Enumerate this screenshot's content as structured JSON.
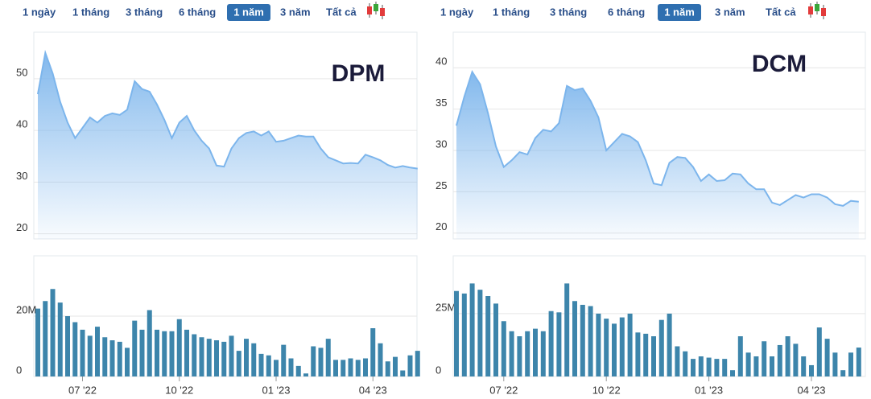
{
  "toolbar": {
    "buttons": [
      "1 ngày",
      "1 tháng",
      "3 tháng",
      "6 tháng",
      "1 năm",
      "3 năm",
      "Tất cả"
    ],
    "active": 4
  },
  "chart_data": [
    {
      "type": "area",
      "title": "DPM",
      "color": "#7cb5ec",
      "values": [
        47,
        55,
        51,
        45.5,
        41.5,
        38.5,
        40.5,
        42.5,
        41.5,
        42.8,
        43.3,
        43,
        44,
        49.5,
        48,
        47.5,
        45,
        42,
        38.5,
        41.5,
        42.8,
        40,
        38,
        36.5,
        33.2,
        33,
        36.5,
        38.5,
        39.5,
        39.8,
        39,
        39.8,
        37.8,
        38,
        38.5,
        39,
        38.8,
        38.8,
        36.5,
        34.8,
        34.2,
        33.6,
        33.7,
        33.6,
        35.3,
        34.8,
        34.2,
        33.3,
        32.8,
        33.1,
        32.8,
        32.6
      ],
      "ylim": [
        19,
        59
      ],
      "yticks": [
        20,
        30,
        40,
        50
      ],
      "grid": true
    },
    {
      "type": "bar",
      "color": "#3d85ab",
      "values": [
        22500000,
        25000000,
        29000000,
        24500000,
        20000000,
        18000000,
        15500000,
        13500000,
        16500000,
        13000000,
        12000000,
        11500000,
        9500000,
        18500000,
        15500000,
        22000000,
        15500000,
        15000000,
        15000000,
        19000000,
        15500000,
        14000000,
        13000000,
        12500000,
        12000000,
        11500000,
        13500000,
        8500000,
        12500000,
        11000000,
        7500000,
        7000000,
        5500000,
        10500000,
        6000000,
        3500000,
        1000000,
        10000000,
        9500000,
        12500000,
        5500000,
        5500000,
        6000000,
        5500000,
        6000000,
        16000000,
        11000000,
        5000000,
        6500000,
        2000000,
        7000000,
        8500000
      ],
      "ylim": [
        0,
        40000000
      ],
      "yticks": [
        0,
        {
          "value": 20000000,
          "label": "20M"
        }
      ],
      "grid": true,
      "xticks": [
        {
          "value": 6,
          "label": "07 '22"
        },
        {
          "value": 19,
          "label": "10 '22"
        },
        {
          "value": 32,
          "label": "01 '23"
        },
        {
          "value": 45,
          "label": "04 '23"
        }
      ]
    },
    {
      "type": "area",
      "title": "DCM",
      "color": "#7cb5ec",
      "values": [
        33,
        36.5,
        39.5,
        38,
        34.5,
        30.5,
        28,
        28.8,
        29.8,
        29.5,
        31.5,
        32.5,
        32.3,
        33.3,
        37.8,
        37.3,
        37.5,
        36,
        34,
        30,
        31,
        32,
        31.7,
        31,
        28.8,
        26,
        25.8,
        28.5,
        29.2,
        29.1,
        28,
        26.3,
        27.1,
        26.3,
        26.4,
        27.2,
        27.1,
        26,
        25.3,
        25.3,
        23.7,
        23.4,
        24,
        24.6,
        24.3,
        24.7,
        24.7,
        24.3,
        23.5,
        23.3,
        23.9,
        23.8
      ],
      "ylim": [
        19.3,
        44.3
      ],
      "yticks": [
        20,
        25,
        30,
        35,
        40
      ],
      "grid": true
    },
    {
      "type": "bar",
      "color": "#3d85ab",
      "values": [
        34000000,
        33000000,
        37000000,
        34500000,
        32000000,
        29000000,
        22000000,
        18000000,
        16000000,
        18000000,
        19000000,
        18000000,
        26000000,
        25500000,
        37000000,
        30000000,
        28500000,
        28000000,
        25000000,
        23000000,
        21000000,
        23500000,
        25000000,
        17500000,
        17000000,
        16000000,
        22500000,
        25000000,
        12000000,
        10000000,
        7000000,
        8000000,
        7500000,
        7000000,
        7000000,
        2500000,
        16000000,
        9500000,
        8000000,
        14000000,
        8000000,
        12500000,
        16000000,
        13000000,
        8000000,
        4500000,
        19500000,
        15000000,
        9500000,
        2500000,
        9500000,
        11500000
      ],
      "ylim": [
        0,
        48000000
      ],
      "yticks": [
        0,
        {
          "value": 25000000,
          "label": "25M"
        }
      ],
      "grid": true,
      "xticks": [
        {
          "value": 6,
          "label": "07 '22"
        },
        {
          "value": 19,
          "label": "10 '22"
        },
        {
          "value": 32,
          "label": "01 '23"
        },
        {
          "value": 45,
          "label": "04 '23"
        }
      ]
    }
  ]
}
